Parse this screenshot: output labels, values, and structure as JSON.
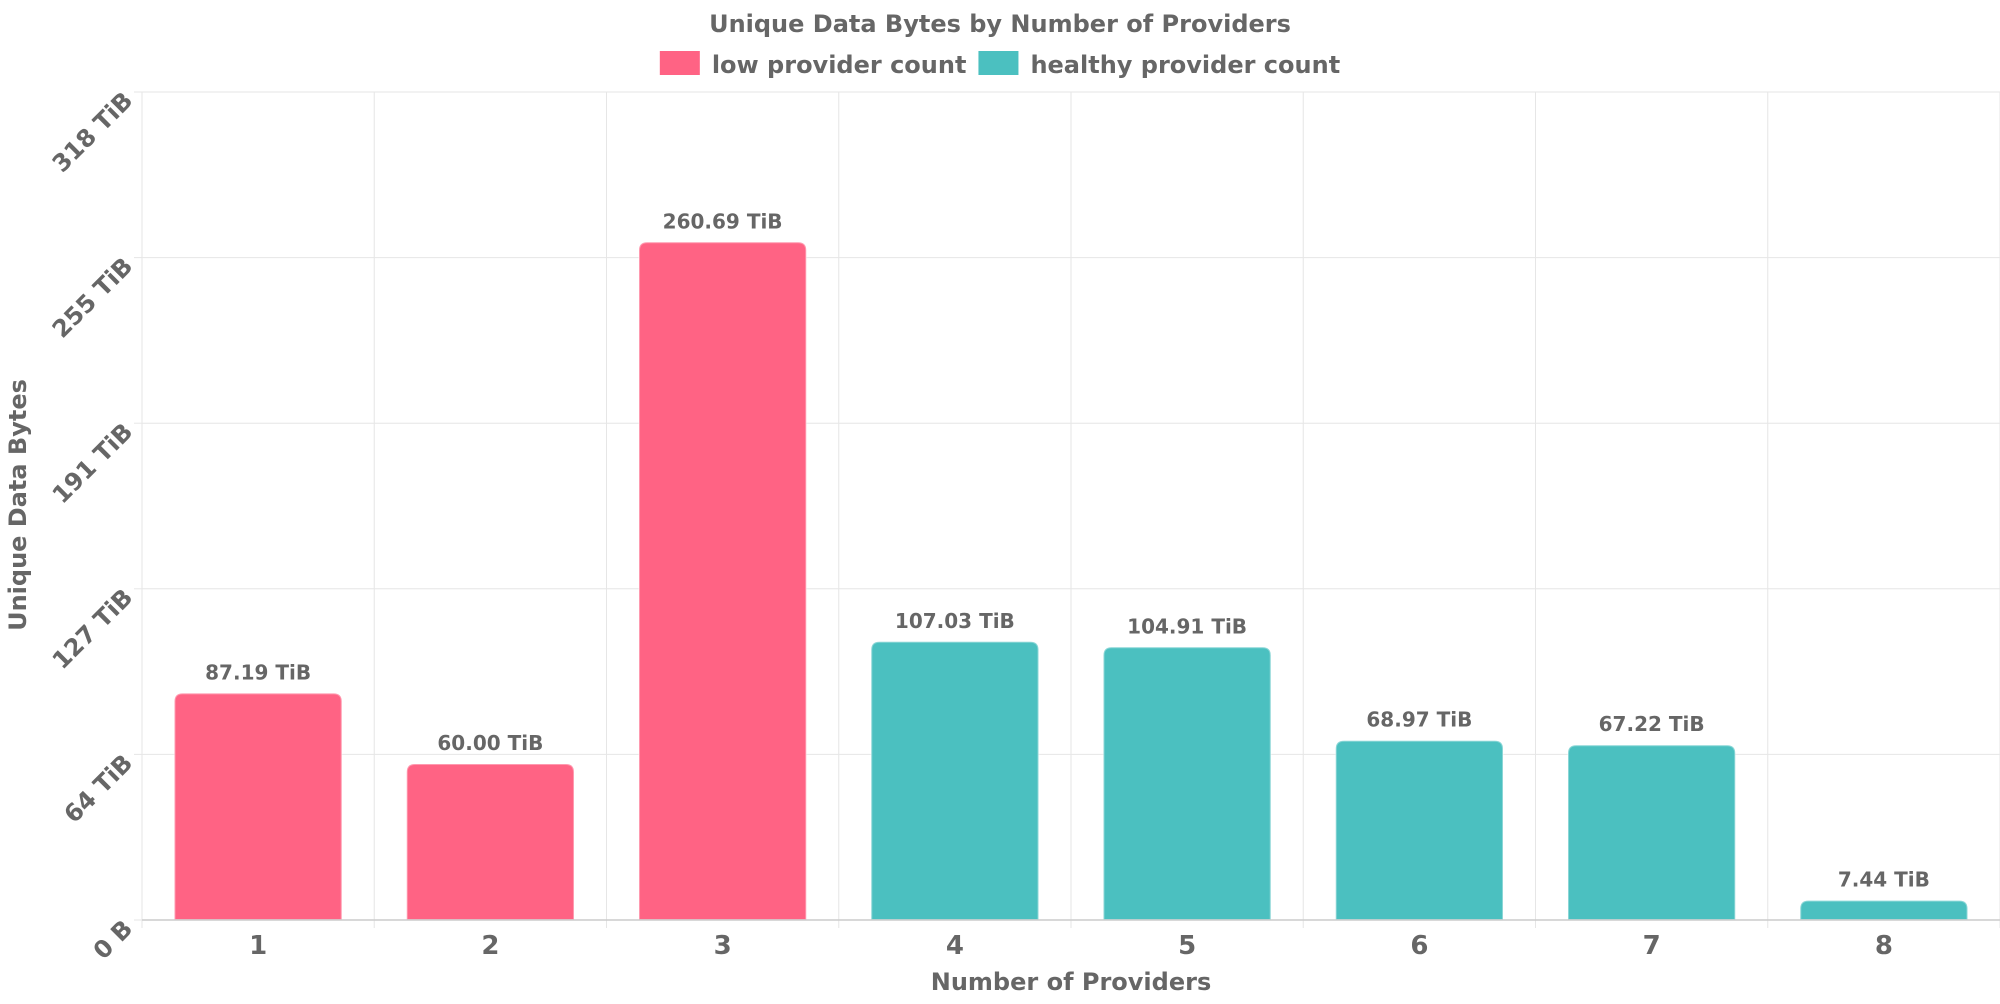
{
  "chart_data": {
    "type": "bar",
    "title": "Unique Data Bytes by Number of Providers",
    "xlabel": "Number of Providers",
    "ylabel": "Unique Data Bytes",
    "categories": [
      "1",
      "2",
      "3",
      "4",
      "5",
      "6",
      "7",
      "8"
    ],
    "values_tib": [
      87.19,
      60.0,
      260.69,
      107.03,
      104.91,
      68.97,
      67.22,
      7.44
    ],
    "value_labels": [
      "87.19 TiB",
      "60.00 TiB",
      "260.69 TiB",
      "107.03 TiB",
      "104.91 TiB",
      "68.97 TiB",
      "67.22 TiB",
      "7.44 TiB"
    ],
    "bar_series": [
      "low provider count",
      "low provider count",
      "low provider count",
      "healthy provider count",
      "healthy provider count",
      "healthy provider count",
      "healthy provider count",
      "healthy provider count"
    ],
    "legend": [
      {
        "name": "low provider count",
        "color": "#ff6384"
      },
      {
        "name": "healthy provider count",
        "color": "#4bc0c0"
      }
    ],
    "legend_position": "top",
    "y_ticks": [
      {
        "value": 0,
        "label": "0 B"
      },
      {
        "value": 63.7,
        "label": "64 TiB"
      },
      {
        "value": 127.4,
        "label": "127 TiB"
      },
      {
        "value": 191.1,
        "label": "191 TiB"
      },
      {
        "value": 254.8,
        "label": "255 TiB"
      },
      {
        "value": 318.5,
        "label": "318 TiB"
      }
    ],
    "ylim": [
      0,
      318.5
    ],
    "grid": true,
    "colors": {
      "text": "#666666",
      "grid": "#e6e6e6"
    }
  }
}
